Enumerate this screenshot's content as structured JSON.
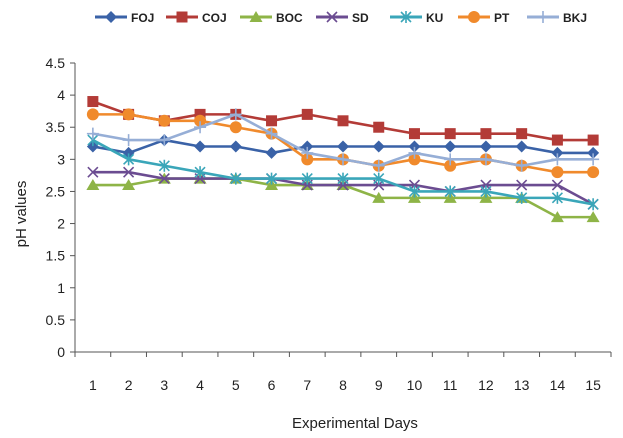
{
  "chart_data": {
    "type": "line",
    "title": "",
    "xlabel": "Experimental Days",
    "ylabel": "pH values",
    "x": [
      1,
      2,
      3,
      4,
      5,
      6,
      7,
      8,
      9,
      10,
      11,
      12,
      13,
      14,
      15
    ],
    "ylim": [
      0,
      4.5
    ],
    "yticks": [
      0,
      0.5,
      1,
      1.5,
      2,
      2.5,
      3,
      3.5,
      4,
      4.5
    ],
    "ytick_labels": [
      "0",
      "0.5",
      "1",
      "1.5",
      "2",
      "2.5",
      "3",
      "3.5",
      "4",
      "4.5"
    ],
    "grid": false,
    "legend_position": "top",
    "series": [
      {
        "name": "FOJ",
        "color": "#3a62a7",
        "marker": "diamond",
        "values": [
          3.2,
          3.1,
          3.3,
          3.2,
          3.2,
          3.1,
          3.2,
          3.2,
          3.2,
          3.2,
          3.2,
          3.2,
          3.2,
          3.1,
          3.1
        ]
      },
      {
        "name": "COJ",
        "color": "#b33b37",
        "marker": "square",
        "values": [
          3.9,
          3.7,
          3.6,
          3.7,
          3.7,
          3.6,
          3.7,
          3.6,
          3.5,
          3.4,
          3.4,
          3.4,
          3.4,
          3.3,
          3.3
        ]
      },
      {
        "name": "BOC",
        "color": "#8eb447",
        "marker": "triangle",
        "values": [
          2.6,
          2.6,
          2.7,
          2.7,
          2.7,
          2.6,
          2.6,
          2.6,
          2.4,
          2.4,
          2.4,
          2.4,
          2.4,
          2.1,
          2.1
        ]
      },
      {
        "name": "SD",
        "color": "#6b4c91",
        "marker": "x",
        "values": [
          2.8,
          2.8,
          2.7,
          2.7,
          2.7,
          2.7,
          2.6,
          2.6,
          2.6,
          2.6,
          2.5,
          2.6,
          2.6,
          2.6,
          2.3
        ]
      },
      {
        "name": "KU",
        "color": "#3aa6b9",
        "marker": "star",
        "values": [
          3.3,
          3.0,
          2.9,
          2.8,
          2.7,
          2.7,
          2.7,
          2.7,
          2.7,
          2.5,
          2.5,
          2.5,
          2.4,
          2.4,
          2.3
        ]
      },
      {
        "name": "PT",
        "color": "#f08a2c",
        "marker": "circle",
        "values": [
          3.7,
          3.7,
          3.6,
          3.6,
          3.5,
          3.4,
          3.0,
          3.0,
          2.9,
          3.0,
          2.9,
          3.0,
          2.9,
          2.8,
          2.8
        ]
      },
      {
        "name": "BKJ",
        "color": "#96aed6",
        "marker": "plus",
        "values": [
          3.4,
          3.3,
          3.3,
          3.5,
          3.7,
          3.4,
          3.1,
          3.0,
          2.9,
          3.1,
          3.0,
          3.0,
          2.9,
          3.0,
          3.0
        ]
      }
    ]
  }
}
